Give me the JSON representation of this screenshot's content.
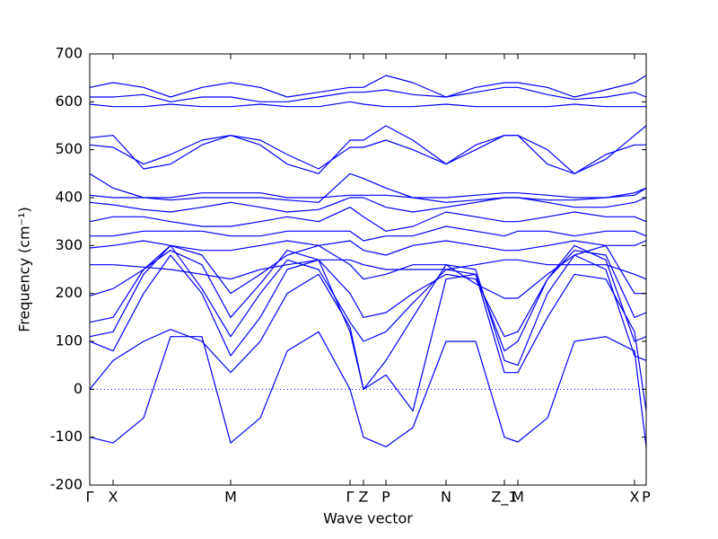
{
  "chart_data": {
    "type": "line",
    "xlabel": "Wave vector",
    "ylabel": "Frequency (cm⁻¹)",
    "xlim": [
      0,
      620
    ],
    "ylim": [
      -200,
      700
    ],
    "yticks": [
      -200,
      -100,
      0,
      100,
      200,
      300,
      400,
      500,
      600,
      700
    ],
    "xticks": [
      {
        "value": 0,
        "label": "Γ"
      },
      {
        "value": 26,
        "label": "X"
      },
      {
        "value": 157,
        "label": "M"
      },
      {
        "value": 290,
        "label": "Γ"
      },
      {
        "value": 305,
        "label": "Z"
      },
      {
        "value": 330,
        "label": "P"
      },
      {
        "value": 397,
        "label": "N"
      },
      {
        "value": 462,
        "label": "Z_1"
      },
      {
        "value": 477,
        "label": "M"
      },
      {
        "value": 607,
        "label": "X"
      },
      {
        "value": 620,
        "label": "P"
      }
    ],
    "hline": 0,
    "x": [
      0,
      26,
      60,
      90,
      125,
      157,
      190,
      220,
      255,
      290,
      305,
      330,
      360,
      397,
      430,
      462,
      477,
      510,
      540,
      575,
      607,
      620
    ],
    "series": [
      {
        "color": "#0000ff",
        "values": [
          -100,
          -112,
          -60,
          110,
          110,
          -112,
          -60,
          80,
          120,
          0,
          -100,
          -120,
          -80,
          100,
          100,
          -100,
          -110,
          -60,
          100,
          110,
          80,
          -120
        ]
      },
      {
        "color": "#0000ff",
        "values": [
          0,
          60,
          100,
          125,
          100,
          35,
          100,
          200,
          240,
          130,
          0,
          30,
          -45,
          230,
          240,
          35,
          35,
          150,
          240,
          230,
          120,
          -45
        ]
      },
      {
        "color": "#0000ff",
        "values": [
          100,
          80,
          200,
          280,
          200,
          70,
          150,
          250,
          270,
          120,
          0,
          60,
          150,
          260,
          250,
          60,
          50,
          200,
          280,
          250,
          70,
          60
        ]
      },
      {
        "color": "#0000ff",
        "values": [
          110,
          120,
          240,
          300,
          210,
          110,
          200,
          270,
          250,
          140,
          100,
          120,
          180,
          250,
          240,
          80,
          100,
          230,
          300,
          270,
          100,
          110
        ]
      },
      {
        "color": "#0000ff",
        "values": [
          140,
          150,
          250,
          290,
          260,
          150,
          220,
          290,
          270,
          200,
          150,
          160,
          200,
          240,
          230,
          110,
          120,
          230,
          290,
          280,
          150,
          160
        ]
      },
      {
        "color": "#0000ff",
        "values": [
          195,
          210,
          250,
          300,
          280,
          200,
          240,
          280,
          300,
          260,
          230,
          240,
          260,
          260,
          220,
          190,
          190,
          240,
          280,
          300,
          200,
          200
        ]
      },
      {
        "color": "#0000ff",
        "values": [
          260,
          260,
          255,
          250,
          240,
          230,
          250,
          260,
          270,
          270,
          260,
          250,
          250,
          250,
          260,
          270,
          270,
          260,
          260,
          260,
          240,
          230
        ]
      },
      {
        "color": "#0000ff",
        "values": [
          295,
          300,
          310,
          300,
          290,
          290,
          300,
          310,
          300,
          310,
          290,
          280,
          300,
          310,
          300,
          290,
          290,
          300,
          310,
          300,
          300,
          310
        ]
      },
      {
        "color": "#0000ff",
        "values": [
          320,
          320,
          330,
          330,
          330,
          320,
          320,
          330,
          330,
          330,
          310,
          320,
          320,
          340,
          330,
          320,
          330,
          330,
          320,
          330,
          330,
          320
        ]
      },
      {
        "color": "#0000ff",
        "values": [
          350,
          360,
          360,
          350,
          340,
          340,
          350,
          360,
          350,
          380,
          360,
          330,
          340,
          370,
          360,
          350,
          350,
          360,
          370,
          360,
          360,
          350
        ]
      },
      {
        "color": "#0000ff",
        "values": [
          390,
          385,
          375,
          370,
          380,
          390,
          380,
          370,
          375,
          400,
          400,
          380,
          370,
          380,
          390,
          400,
          400,
          390,
          380,
          380,
          390,
          400
        ]
      },
      {
        "color": "#0000ff",
        "values": [
          405,
          400,
          400,
          400,
          410,
          410,
          410,
          400,
          400,
          405,
          405,
          405,
          400,
          400,
          405,
          410,
          410,
          405,
          400,
          400,
          405,
          420
        ]
      },
      {
        "color": "#0000ff",
        "values": [
          450,
          420,
          400,
          395,
          400,
          400,
          400,
          395,
          390,
          450,
          440,
          420,
          400,
          390,
          395,
          400,
          400,
          395,
          395,
          400,
          410,
          420
        ]
      },
      {
        "color": "#0000ff",
        "values": [
          510,
          505,
          470,
          490,
          520,
          530,
          520,
          490,
          460,
          505,
          505,
          520,
          500,
          470,
          500,
          530,
          530,
          500,
          450,
          490,
          510,
          510
        ]
      },
      {
        "color": "#0000ff",
        "values": [
          525,
          530,
          460,
          470,
          510,
          530,
          510,
          470,
          450,
          520,
          520,
          550,
          520,
          470,
          510,
          530,
          530,
          470,
          450,
          480,
          530,
          550
        ]
      },
      {
        "color": "#0000ff",
        "values": [
          595,
          590,
          590,
          595,
          590,
          590,
          595,
          590,
          590,
          600,
          595,
          590,
          590,
          595,
          590,
          590,
          590,
          590,
          595,
          590,
          590,
          590
        ]
      },
      {
        "color": "#0000ff",
        "values": [
          610,
          610,
          615,
          600,
          610,
          610,
          600,
          600,
          610,
          620,
          620,
          625,
          615,
          610,
          620,
          630,
          630,
          615,
          605,
          610,
          620,
          610
        ]
      },
      {
        "color": "#0000ff",
        "values": [
          630,
          640,
          630,
          610,
          630,
          640,
          630,
          610,
          620,
          630,
          630,
          655,
          640,
          610,
          630,
          640,
          640,
          630,
          610,
          625,
          640,
          655
        ]
      }
    ]
  }
}
